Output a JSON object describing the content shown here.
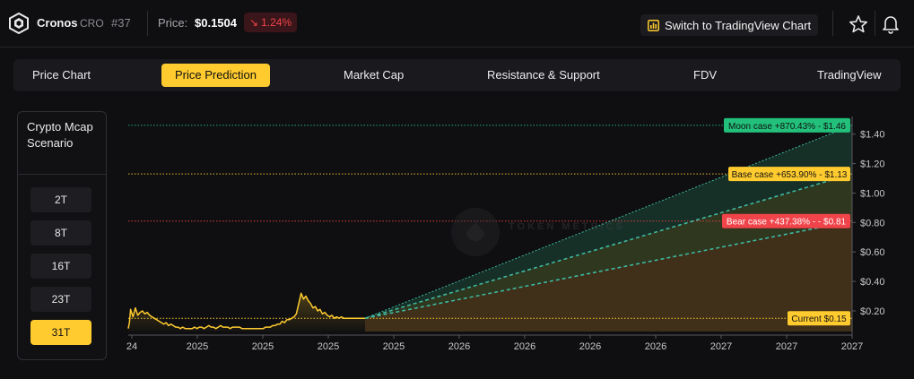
{
  "header": {
    "coin_name": "Cronos",
    "coin_symbol": "CRO",
    "rank": "#37",
    "price_label": "Price:",
    "price_value": "$0.1504",
    "change_arrow": "↘",
    "change_value": "1.24%",
    "tradingview_button": "Switch to TradingView Chart",
    "icons": [
      "cronos-logo-icon",
      "chart-icon",
      "star-icon",
      "bell-icon"
    ]
  },
  "tabs": [
    {
      "label": "Price Chart",
      "active": false
    },
    {
      "label": "Price Prediction",
      "active": true
    },
    {
      "label": "Market Cap",
      "active": false
    },
    {
      "label": "Resistance & Support",
      "active": false
    },
    {
      "label": "FDV",
      "active": false
    },
    {
      "label": "TradingView",
      "active": false
    }
  ],
  "scenario_panel": {
    "title": "Crypto Mcap Scenario",
    "options": [
      "2T",
      "8T",
      "16T",
      "23T",
      "31T"
    ],
    "selected": "31T"
  },
  "colors": {
    "accent": "#ffcb2f",
    "moon": "#22c07a",
    "base": "#ffcb2f",
    "bear": "#f0444a",
    "negative": "#f0444a"
  },
  "watermark": "TOKEN METRICS",
  "chart_data": {
    "type": "line",
    "title": "",
    "x_tick_labels": [
      "24",
      "2025",
      "2025",
      "2025",
      "2025",
      "2026",
      "2026",
      "2026",
      "2026",
      "2027",
      "2027",
      "2027"
    ],
    "y_tick_labels": [
      "$0.20",
      "$0.40",
      "$0.60",
      "$0.80",
      "$1.00",
      "$1.20",
      "$1.40"
    ],
    "ylim": [
      0.06,
      1.52
    ],
    "y_scale": "linear",
    "grid": false,
    "history_series": {
      "name": "Price",
      "color": "#ffcb2f",
      "x": [
        0,
        0.5,
        1,
        2,
        3,
        4,
        5,
        6,
        7,
        8,
        9,
        10,
        11,
        12,
        13,
        14,
        15,
        16,
        17,
        18,
        19,
        20,
        21,
        22,
        23,
        24,
        25,
        26,
        27,
        28,
        29,
        30,
        31,
        32,
        33,
        34,
        35,
        36,
        37,
        38,
        39,
        40,
        41,
        42,
        43,
        44,
        45,
        46,
        47,
        48,
        49,
        50,
        51,
        52,
        53,
        54,
        55,
        56,
        57,
        58,
        59,
        60,
        61,
        62,
        63,
        64,
        65,
        66,
        67,
        68,
        69,
        70,
        71,
        72,
        73,
        74,
        75,
        76,
        77,
        78,
        79,
        80,
        81,
        82,
        83,
        84,
        85,
        86,
        87,
        88,
        89,
        90,
        91,
        92,
        93,
        94,
        95,
        96,
        97,
        98,
        99,
        100
      ],
      "y": [
        0.08,
        0.12,
        0.21,
        0.16,
        0.22,
        0.17,
        0.19,
        0.2,
        0.18,
        0.19,
        0.17,
        0.16,
        0.15,
        0.14,
        0.13,
        0.12,
        0.11,
        0.12,
        0.1,
        0.11,
        0.1,
        0.09,
        0.09,
        0.08,
        0.09,
        0.08,
        0.08,
        0.08,
        0.08,
        0.09,
        0.08,
        0.09,
        0.09,
        0.08,
        0.09,
        0.1,
        0.09,
        0.09,
        0.08,
        0.09,
        0.1,
        0.09,
        0.09,
        0.09,
        0.08,
        0.09,
        0.09,
        0.09,
        0.09,
        0.08,
        0.08,
        0.08,
        0.08,
        0.08,
        0.08,
        0.08,
        0.08,
        0.08,
        0.08,
        0.09,
        0.09,
        0.09,
        0.1,
        0.1,
        0.11,
        0.11,
        0.13,
        0.12,
        0.14,
        0.14,
        0.15,
        0.16,
        0.18,
        0.25,
        0.32,
        0.28,
        0.3,
        0.27,
        0.25,
        0.22,
        0.23,
        0.2,
        0.21,
        0.18,
        0.19,
        0.17,
        0.16,
        0.17,
        0.15,
        0.16,
        0.15,
        0.16,
        0.15,
        0.15,
        0.15,
        0.15,
        0.15,
        0.15,
        0.15,
        0.15,
        0.15,
        0.15
      ]
    },
    "scenarios": [
      {
        "name": "Moon case",
        "change": "+870.43%",
        "target": 1.46,
        "label": "Moon case +870.43% - $1.46",
        "color": "#22c07a"
      },
      {
        "name": "Base case",
        "change": "+653.90%",
        "target": 1.13,
        "label": "Base case +653.90% - $1.13",
        "color": "#ffcb2f"
      },
      {
        "name": "Bear case",
        "change": "+437.38%",
        "target": 0.81,
        "label": "Bear case +437.38% - - $0.81",
        "color": "#f0444a"
      }
    ],
    "current": {
      "label": "Current $0.15",
      "value": 0.15,
      "color": "#ffcb2f"
    }
  }
}
